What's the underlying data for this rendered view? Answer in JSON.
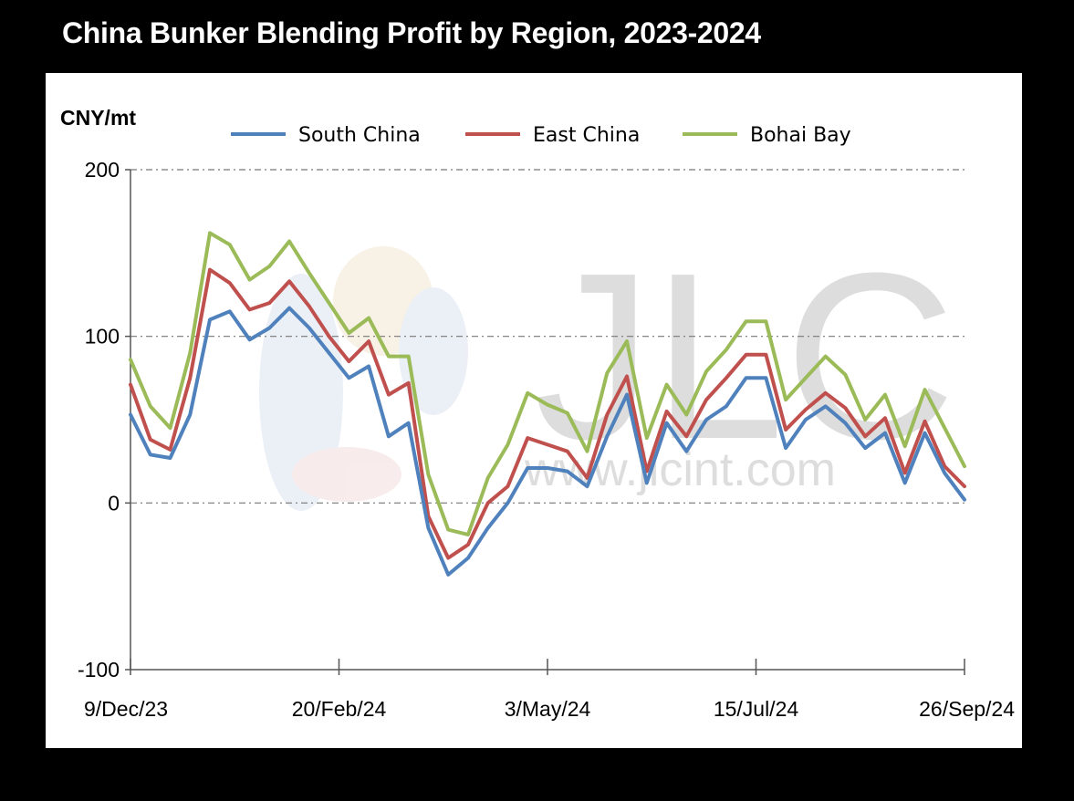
{
  "chart_data": {
    "type": "line",
    "title": "China Bunker Blending Profit by Region, 2023-2024",
    "ylabel": "CNY/mt",
    "xlabel": "",
    "ylim": [
      -100,
      200
    ],
    "yticks": [
      "200",
      "100",
      "0",
      "-100"
    ],
    "xtick_labels": [
      "9/Dec/23",
      "20/Feb/24",
      "3/May/24",
      "15/Jul/24",
      "26/Sep/24"
    ],
    "grid": "horizontal dash-dot",
    "legend_position": "top",
    "watermark": {
      "logo_text": "JLC",
      "url_text": "www.jlcint.com"
    },
    "series": [
      {
        "name": "South China",
        "color": "#4f81bd",
        "values": [
          53,
          29,
          27,
          53,
          110,
          115,
          98,
          105,
          117,
          105,
          90,
          75,
          82,
          40,
          48,
          -15,
          -43,
          -33,
          -15,
          0,
          21,
          21,
          19,
          10,
          40,
          65,
          12,
          48,
          31,
          50,
          58,
          75,
          75,
          33,
          50,
          58,
          48,
          33,
          42,
          12,
          42,
          18,
          2
        ]
      },
      {
        "name": "East China",
        "color": "#c0504d",
        "values": [
          71,
          38,
          32,
          75,
          140,
          132,
          116,
          120,
          133,
          118,
          100,
          85,
          97,
          65,
          72,
          -8,
          -33,
          -25,
          0,
          10,
          39,
          35,
          31,
          15,
          53,
          76,
          19,
          55,
          40,
          62,
          75,
          89,
          89,
          44,
          56,
          66,
          57,
          40,
          51,
          18,
          49,
          22,
          10
        ]
      },
      {
        "name": "Bohai Bay",
        "color": "#9bbb59",
        "values": [
          86,
          58,
          45,
          90,
          162,
          155,
          134,
          142,
          157,
          138,
          120,
          102,
          111,
          88,
          88,
          17,
          -16,
          -19,
          15,
          35,
          66,
          59,
          54,
          31,
          78,
          97,
          39,
          71,
          53,
          79,
          92,
          109,
          109,
          62,
          75,
          88,
          77,
          50,
          65,
          34,
          68,
          45,
          22
        ]
      }
    ]
  }
}
